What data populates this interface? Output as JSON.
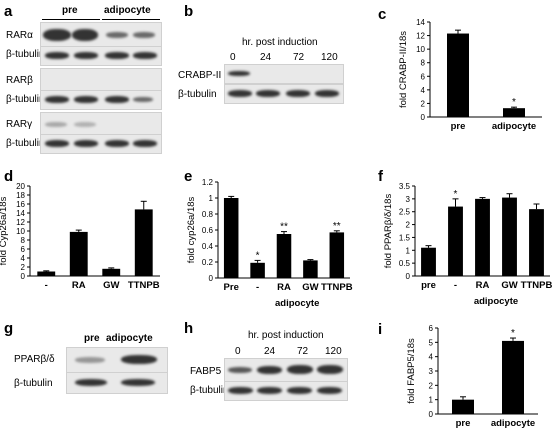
{
  "panels": {
    "a": {
      "letter": "a",
      "groups": [
        "pre",
        "adipocyte"
      ],
      "rows": [
        "RARα",
        "β-tubulin",
        "RARβ",
        "β-tubulin",
        "RARγ",
        "β-tubulin"
      ]
    },
    "b": {
      "letter": "b",
      "header": "hr. post induction",
      "times": [
        "0",
        "24",
        "72",
        "120"
      ],
      "rows": [
        "CRABP-II",
        "β-tubulin"
      ]
    },
    "g": {
      "letter": "g",
      "groups": [
        "pre",
        "adipocyte"
      ],
      "rows": [
        "PPARβ/δ",
        "β-tubulin"
      ]
    },
    "h": {
      "letter": "h",
      "header": "hr. post induction",
      "times": [
        "0",
        "24",
        "72",
        "120"
      ],
      "rows": [
        "FABP5",
        "β-tubulin"
      ]
    }
  },
  "chart_data": [
    {
      "id": "c",
      "letter": "c",
      "type": "bar",
      "ylabel": "fold CRABP-II/18s",
      "categories": [
        "pre",
        "adipocyte"
      ],
      "values": [
        12.3,
        1.3
      ],
      "errors": [
        0.5,
        0.15
      ],
      "sig": [
        "",
        "*"
      ],
      "ylim": [
        0,
        14
      ],
      "yticks": [
        "0",
        "2",
        "4",
        "6",
        "8",
        "10",
        "12",
        "14"
      ],
      "group_label": ""
    },
    {
      "id": "d",
      "letter": "d",
      "type": "bar",
      "ylabel": "fold Cyp26a/18s",
      "categories": [
        "-",
        "RA",
        "GW",
        "TTNPB"
      ],
      "values": [
        1.0,
        9.8,
        1.6,
        14.8
      ],
      "errors": [
        0.15,
        0.4,
        0.2,
        1.8
      ],
      "sig": [
        "",
        "",
        "",
        ""
      ],
      "ylim": [
        0,
        20
      ],
      "yticks": [
        "0",
        "2",
        "4",
        "6",
        "8",
        "10",
        "12",
        "14",
        "16",
        "18",
        "20"
      ],
      "group_label": ""
    },
    {
      "id": "e",
      "letter": "e",
      "type": "bar",
      "ylabel": "fold cyp26a/18s",
      "categories": [
        "Pre",
        "-",
        "RA",
        "GW",
        "TTNPB"
      ],
      "values": [
        1.0,
        0.19,
        0.55,
        0.22,
        0.57
      ],
      "errors": [
        0.02,
        0.03,
        0.03,
        0.01,
        0.02
      ],
      "sig": [
        "",
        "*",
        "**",
        "",
        "**"
      ],
      "ylim": [
        0,
        1.2
      ],
      "yticks": [
        "0",
        "0.2",
        "0.4",
        "0.6",
        "0.8",
        "1",
        "1.2"
      ],
      "group_label": "adipocyte",
      "group_start": 1
    },
    {
      "id": "f",
      "letter": "f",
      "type": "bar",
      "ylabel": "fold PPARβ/δ/18s",
      "categories": [
        "pre",
        "-",
        "RA",
        "GW",
        "TTNPB"
      ],
      "values": [
        1.1,
        2.7,
        3.0,
        3.05,
        2.6
      ],
      "errors": [
        0.08,
        0.3,
        0.05,
        0.15,
        0.2
      ],
      "sig": [
        "",
        "*",
        "",
        "",
        ""
      ],
      "ylim": [
        0,
        3.5
      ],
      "yticks": [
        "0",
        "0.5",
        "1",
        "1.5",
        "2",
        "2.5",
        "3",
        "3.5"
      ],
      "group_label": "adipocyte",
      "group_start": 1
    },
    {
      "id": "i",
      "letter": "i",
      "type": "bar",
      "ylabel": "fold FABP5/18s",
      "categories": [
        "pre",
        "adipocyte"
      ],
      "values": [
        1.0,
        5.1
      ],
      "errors": [
        0.2,
        0.2
      ],
      "sig": [
        "",
        "*"
      ],
      "ylim": [
        0,
        6
      ],
      "yticks": [
        "0",
        "1",
        "2",
        "3",
        "4",
        "5",
        "6"
      ],
      "group_label": ""
    }
  ]
}
